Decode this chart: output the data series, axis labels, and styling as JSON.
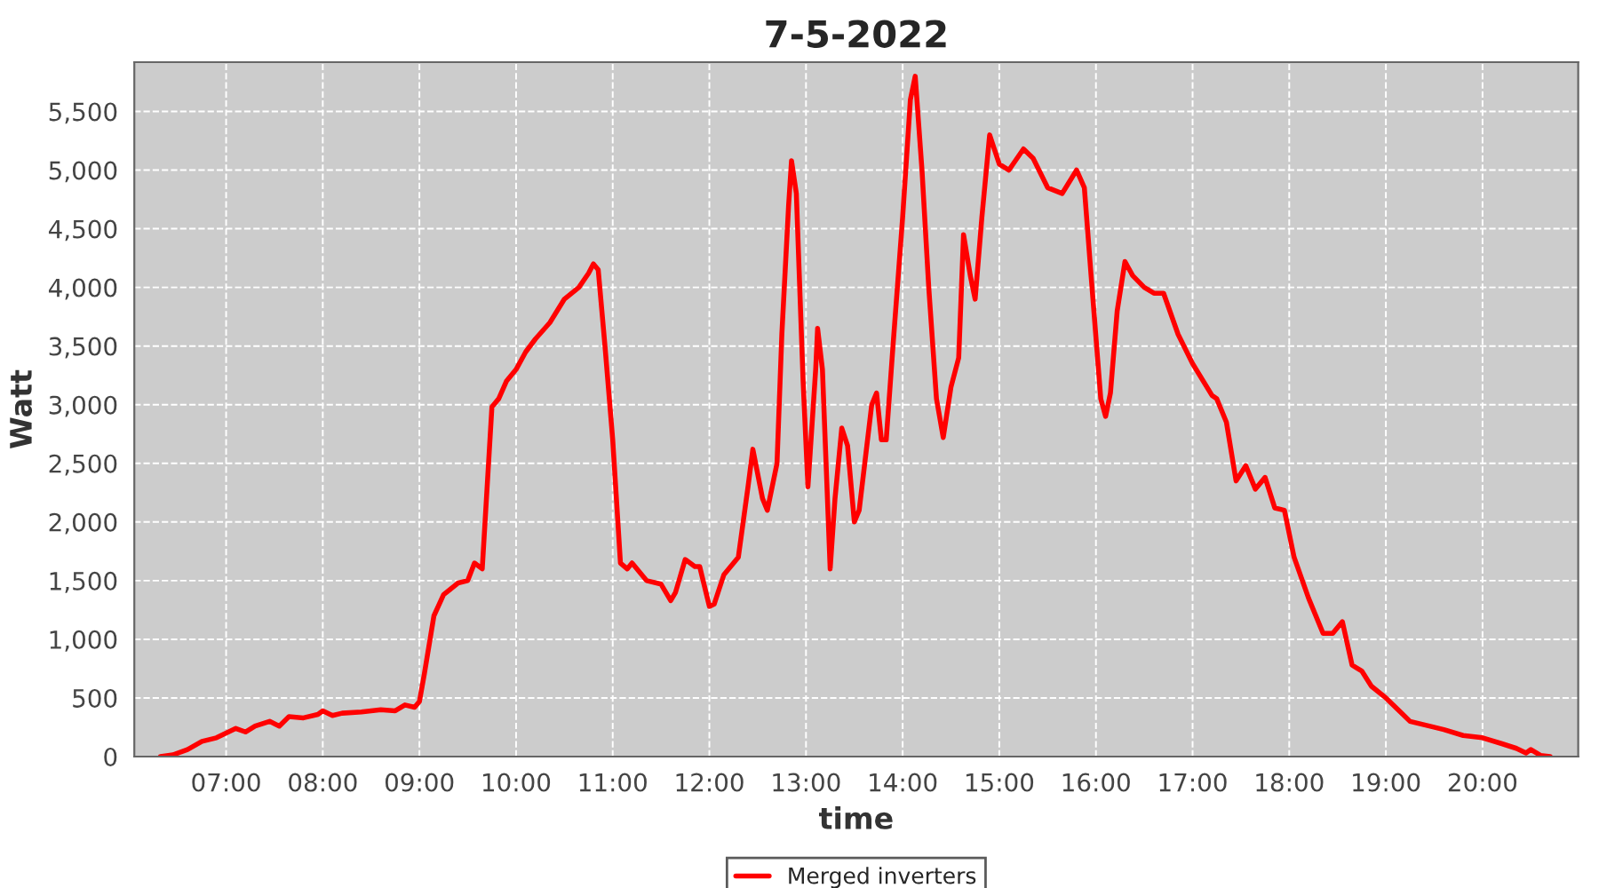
{
  "chart_data": {
    "type": "line",
    "title": "7-5-2022",
    "xlabel": "time",
    "ylabel": "Watt",
    "x": [
      6.32,
      6.45,
      6.6,
      6.75,
      6.9,
      7.0,
      7.1,
      7.2,
      7.3,
      7.45,
      7.55,
      7.65,
      7.8,
      7.95,
      8.0,
      8.1,
      8.2,
      8.4,
      8.6,
      8.75,
      8.85,
      8.95,
      9.0,
      9.05,
      9.15,
      9.25,
      9.4,
      9.5,
      9.57,
      9.65,
      9.75,
      9.82,
      9.9,
      10.0,
      10.1,
      10.2,
      10.35,
      10.5,
      10.65,
      10.75,
      10.8,
      10.85,
      10.92,
      11.0,
      11.08,
      11.15,
      11.2,
      11.35,
      11.5,
      11.6,
      11.65,
      11.75,
      11.85,
      11.9,
      12.0,
      12.05,
      12.15,
      12.3,
      12.4,
      12.45,
      12.55,
      12.6,
      12.7,
      12.75,
      12.82,
      12.85,
      12.9,
      12.97,
      13.02,
      13.1,
      13.12,
      13.17,
      13.25,
      13.3,
      13.37,
      13.43,
      13.5,
      13.55,
      13.68,
      13.73,
      13.78,
      13.83,
      13.9,
      14.0,
      14.08,
      14.13,
      14.2,
      14.27,
      14.35,
      14.42,
      14.5,
      14.58,
      14.63,
      14.7,
      14.75,
      14.82,
      14.9,
      15.0,
      15.1,
      15.25,
      15.35,
      15.5,
      15.65,
      15.8,
      15.88,
      15.95,
      16.05,
      16.1,
      16.15,
      16.22,
      16.3,
      16.38,
      16.5,
      16.6,
      16.7,
      16.85,
      17.0,
      17.2,
      17.25,
      17.35,
      17.45,
      17.55,
      17.65,
      17.75,
      17.85,
      17.95,
      18.05,
      18.2,
      18.35,
      18.45,
      18.55,
      18.65,
      18.75,
      18.85,
      19.0,
      19.15,
      19.25,
      19.45,
      19.6,
      19.8,
      20.0,
      20.2,
      20.35,
      20.45,
      20.5,
      20.6,
      20.7
    ],
    "series": [
      {
        "name": "Merged inverters",
        "color": "#ff0000",
        "values": [
          0,
          15,
          60,
          130,
          160,
          200,
          240,
          210,
          260,
          300,
          260,
          340,
          330,
          360,
          390,
          350,
          370,
          380,
          400,
          390,
          440,
          420,
          470,
          700,
          1200,
          1380,
          1480,
          1500,
          1650,
          1600,
          2980,
          3050,
          3200,
          3300,
          3450,
          3560,
          3700,
          3900,
          4000,
          4120,
          4200,
          4150,
          3500,
          2700,
          1650,
          1600,
          1650,
          1500,
          1470,
          1330,
          1400,
          1680,
          1620,
          1620,
          1280,
          1300,
          1550,
          1700,
          2300,
          2620,
          2200,
          2100,
          2500,
          3600,
          4700,
          5080,
          4800,
          3200,
          2300,
          3300,
          3650,
          3300,
          1600,
          2200,
          2800,
          2650,
          2000,
          2100,
          3000,
          3100,
          2700,
          2700,
          3500,
          4600,
          5600,
          5800,
          5000,
          4000,
          3050,
          2720,
          3150,
          3400,
          4450,
          4100,
          3900,
          4600,
          5300,
          5050,
          5000,
          5180,
          5100,
          4850,
          4800,
          5000,
          4850,
          4100,
          3050,
          2900,
          3100,
          3800,
          4220,
          4100,
          4000,
          3950,
          3950,
          3600,
          3350,
          3080,
          3050,
          2850,
          2350,
          2480,
          2280,
          2380,
          2120,
          2100,
          1700,
          1350,
          1050,
          1050,
          1150,
          780,
          730,
          600,
          500,
          380,
          300,
          260,
          230,
          180,
          160,
          110,
          70,
          30,
          60,
          10,
          0
        ]
      }
    ],
    "xlim": [
      6.05,
      20.99
    ],
    "ylim": [
      0,
      5920
    ],
    "xticks": [
      {
        "value": 7,
        "label": "07:00"
      },
      {
        "value": 8,
        "label": "08:00"
      },
      {
        "value": 9,
        "label": "09:00"
      },
      {
        "value": 10,
        "label": "10:00"
      },
      {
        "value": 11,
        "label": "11:00"
      },
      {
        "value": 12,
        "label": "12:00"
      },
      {
        "value": 13,
        "label": "13:00"
      },
      {
        "value": 14,
        "label": "14:00"
      },
      {
        "value": 15,
        "label": "15:00"
      },
      {
        "value": 16,
        "label": "16:00"
      },
      {
        "value": 17,
        "label": "17:00"
      },
      {
        "value": 18,
        "label": "18:00"
      },
      {
        "value": 19,
        "label": "19:00"
      },
      {
        "value": 20,
        "label": "20:00"
      }
    ],
    "yticks": [
      0,
      500,
      {
        "value": 1000,
        "label": "1,000"
      },
      {
        "value": 1500,
        "label": "1,500"
      },
      {
        "value": 2000,
        "label": "2,000"
      },
      {
        "value": 2500,
        "label": "2,500"
      },
      {
        "value": 3000,
        "label": "3,000"
      },
      {
        "value": 3500,
        "label": "3,500"
      },
      {
        "value": 4000,
        "label": "4,000"
      },
      {
        "value": 4500,
        "label": "4,500"
      },
      {
        "value": 5000,
        "label": "5,000"
      },
      {
        "value": 5500,
        "label": "5,500"
      }
    ],
    "grid": true,
    "legend": "bottom",
    "marker": "none",
    "line_style": "solid"
  }
}
